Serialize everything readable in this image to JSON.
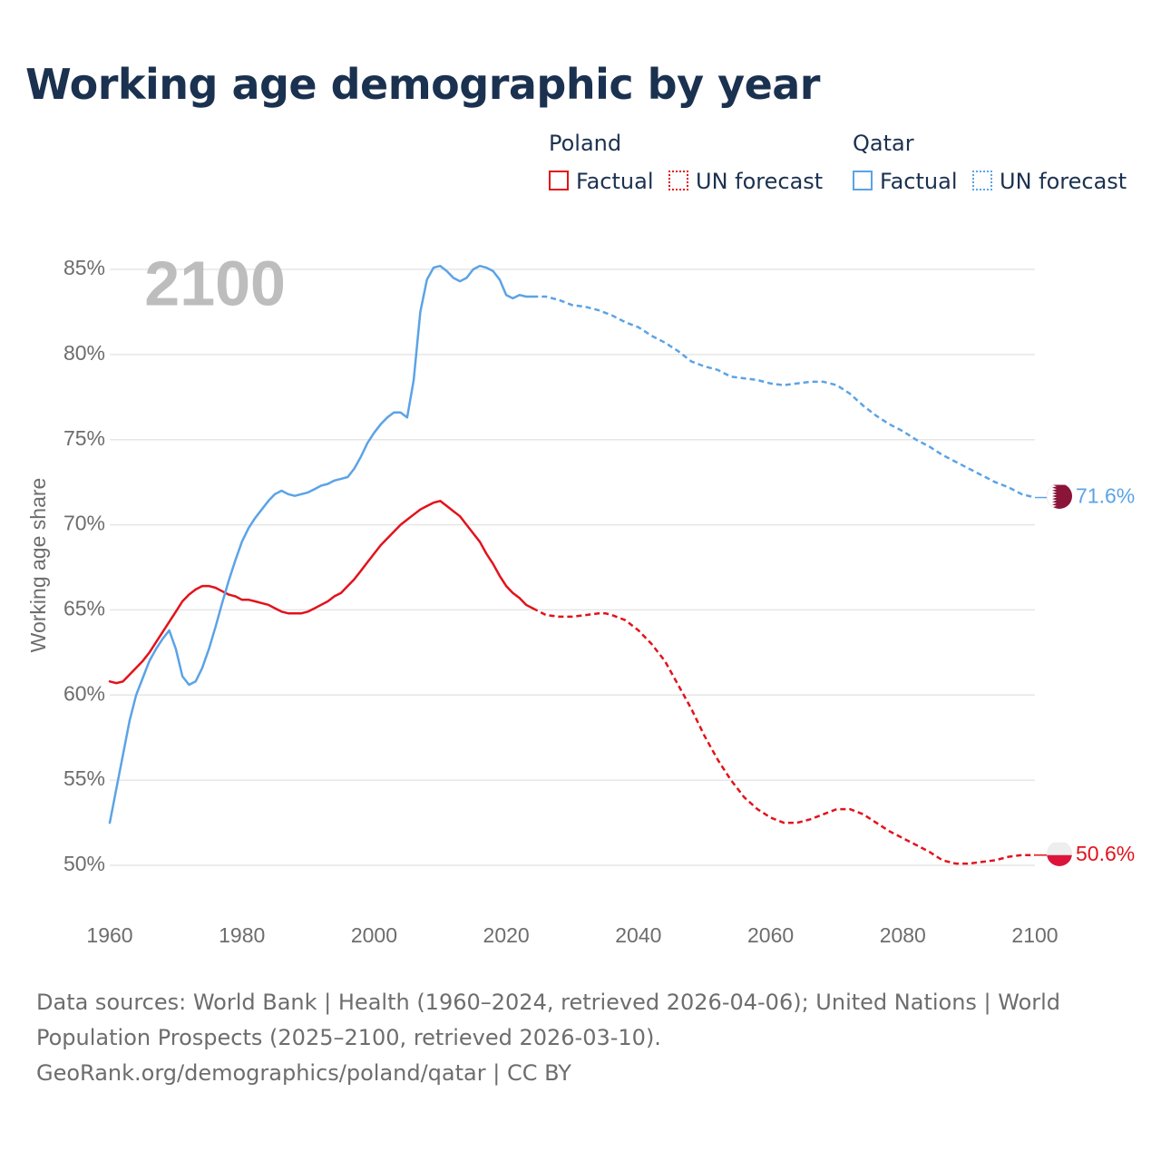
{
  "title": "Working age demographic by year",
  "legend": {
    "groups": [
      {
        "country": "Poland",
        "color": "#e3121b",
        "factual_label": "Factual",
        "forecast_label": "UN forecast"
      },
      {
        "country": "Qatar",
        "color": "#5ba3e6",
        "factual_label": "Factual",
        "forecast_label": "UN forecast"
      }
    ]
  },
  "year_watermark": "2100",
  "footer": {
    "sources": "Data sources: World Bank | Health (1960–2024, retrieved 2026-04-06); United Nations | World Population Prospects (2025–2100, retrieved 2026-03-10).",
    "credit": "GeoRank.org/demographics/poland/qatar | CC BY"
  },
  "chart_data": {
    "type": "line",
    "title": "Working age demographic by year",
    "xlabel": "",
    "ylabel": "Working age share",
    "xlim": [
      1960,
      2100
    ],
    "ylim": [
      48,
      86
    ],
    "x_ticks": [
      1960,
      1980,
      2000,
      2020,
      2040,
      2060,
      2080,
      2100
    ],
    "y_ticks": [
      50,
      55,
      60,
      65,
      70,
      75,
      80,
      85
    ],
    "y_tick_labels": [
      "50%",
      "55%",
      "60%",
      "65%",
      "70%",
      "75%",
      "80%",
      "85%"
    ],
    "x_tick_labels": [
      "1960",
      "1980",
      "2000",
      "2020",
      "2040",
      "2060",
      "2080",
      "2100"
    ],
    "factual_until": 2024,
    "series": [
      {
        "name": "Poland",
        "color": "#e3121b",
        "end_label": "50.6%",
        "flag": "poland",
        "points": [
          [
            1960,
            60.8
          ],
          [
            1961,
            60.7
          ],
          [
            1962,
            60.8
          ],
          [
            1963,
            61.2
          ],
          [
            1964,
            61.6
          ],
          [
            1965,
            62.0
          ],
          [
            1966,
            62.5
          ],
          [
            1967,
            63.1
          ],
          [
            1968,
            63.7
          ],
          [
            1969,
            64.3
          ],
          [
            1970,
            64.9
          ],
          [
            1971,
            65.5
          ],
          [
            1972,
            65.9
          ],
          [
            1973,
            66.2
          ],
          [
            1974,
            66.4
          ],
          [
            1975,
            66.4
          ],
          [
            1976,
            66.3
          ],
          [
            1977,
            66.1
          ],
          [
            1978,
            65.9
          ],
          [
            1979,
            65.8
          ],
          [
            1980,
            65.6
          ],
          [
            1981,
            65.6
          ],
          [
            1982,
            65.5
          ],
          [
            1983,
            65.4
          ],
          [
            1984,
            65.3
          ],
          [
            1985,
            65.1
          ],
          [
            1986,
            64.9
          ],
          [
            1987,
            64.8
          ],
          [
            1988,
            64.8
          ],
          [
            1989,
            64.8
          ],
          [
            1990,
            64.9
          ],
          [
            1991,
            65.1
          ],
          [
            1992,
            65.3
          ],
          [
            1993,
            65.5
          ],
          [
            1994,
            65.8
          ],
          [
            1995,
            66.0
          ],
          [
            1996,
            66.4
          ],
          [
            1997,
            66.8
          ],
          [
            1998,
            67.3
          ],
          [
            1999,
            67.8
          ],
          [
            2000,
            68.3
          ],
          [
            2001,
            68.8
          ],
          [
            2002,
            69.2
          ],
          [
            2003,
            69.6
          ],
          [
            2004,
            70.0
          ],
          [
            2005,
            70.3
          ],
          [
            2006,
            70.6
          ],
          [
            2007,
            70.9
          ],
          [
            2008,
            71.1
          ],
          [
            2009,
            71.3
          ],
          [
            2010,
            71.4
          ],
          [
            2011,
            71.1
          ],
          [
            2012,
            70.8
          ],
          [
            2013,
            70.5
          ],
          [
            2014,
            70.0
          ],
          [
            2015,
            69.5
          ],
          [
            2016,
            69.0
          ],
          [
            2017,
            68.3
          ],
          [
            2018,
            67.7
          ],
          [
            2019,
            67.0
          ],
          [
            2020,
            66.4
          ],
          [
            2021,
            66.0
          ],
          [
            2022,
            65.7
          ],
          [
            2023,
            65.3
          ],
          [
            2024,
            65.1
          ],
          [
            2025,
            64.9
          ],
          [
            2026,
            64.7
          ],
          [
            2028,
            64.6
          ],
          [
            2030,
            64.6
          ],
          [
            2032,
            64.7
          ],
          [
            2034,
            64.8
          ],
          [
            2035,
            64.8
          ],
          [
            2036,
            64.7
          ],
          [
            2038,
            64.4
          ],
          [
            2040,
            63.8
          ],
          [
            2042,
            63.0
          ],
          [
            2044,
            62.0
          ],
          [
            2046,
            60.6
          ],
          [
            2048,
            59.2
          ],
          [
            2050,
            57.6
          ],
          [
            2052,
            56.2
          ],
          [
            2054,
            55.0
          ],
          [
            2056,
            54.0
          ],
          [
            2058,
            53.3
          ],
          [
            2060,
            52.8
          ],
          [
            2062,
            52.5
          ],
          [
            2064,
            52.5
          ],
          [
            2066,
            52.7
          ],
          [
            2068,
            53.0
          ],
          [
            2070,
            53.3
          ],
          [
            2072,
            53.3
          ],
          [
            2074,
            53.0
          ],
          [
            2076,
            52.5
          ],
          [
            2078,
            52.0
          ],
          [
            2080,
            51.6
          ],
          [
            2082,
            51.2
          ],
          [
            2084,
            50.8
          ],
          [
            2086,
            50.3
          ],
          [
            2088,
            50.1
          ],
          [
            2090,
            50.1
          ],
          [
            2092,
            50.2
          ],
          [
            2094,
            50.3
          ],
          [
            2096,
            50.5
          ],
          [
            2098,
            50.6
          ],
          [
            2100,
            50.6
          ]
        ]
      },
      {
        "name": "Qatar",
        "color": "#5ba3e6",
        "end_label": "71.6%",
        "flag": "qatar",
        "points": [
          [
            1960,
            52.5
          ],
          [
            1961,
            54.5
          ],
          [
            1962,
            56.5
          ],
          [
            1963,
            58.5
          ],
          [
            1964,
            60.0
          ],
          [
            1965,
            61.0
          ],
          [
            1966,
            62.0
          ],
          [
            1967,
            62.7
          ],
          [
            1968,
            63.3
          ],
          [
            1969,
            63.8
          ],
          [
            1970,
            62.7
          ],
          [
            1971,
            61.1
          ],
          [
            1972,
            60.6
          ],
          [
            1973,
            60.8
          ],
          [
            1974,
            61.6
          ],
          [
            1975,
            62.7
          ],
          [
            1976,
            64.0
          ],
          [
            1977,
            65.4
          ],
          [
            1978,
            66.7
          ],
          [
            1979,
            67.9
          ],
          [
            1980,
            69.0
          ],
          [
            1981,
            69.8
          ],
          [
            1982,
            70.4
          ],
          [
            1983,
            70.9
          ],
          [
            1984,
            71.4
          ],
          [
            1985,
            71.8
          ],
          [
            1986,
            72.0
          ],
          [
            1987,
            71.8
          ],
          [
            1988,
            71.7
          ],
          [
            1989,
            71.8
          ],
          [
            1990,
            71.9
          ],
          [
            1991,
            72.1
          ],
          [
            1992,
            72.3
          ],
          [
            1993,
            72.4
          ],
          [
            1994,
            72.6
          ],
          [
            1995,
            72.7
          ],
          [
            1996,
            72.8
          ],
          [
            1997,
            73.3
          ],
          [
            1998,
            74.0
          ],
          [
            1999,
            74.8
          ],
          [
            2000,
            75.4
          ],
          [
            2001,
            75.9
          ],
          [
            2002,
            76.3
          ],
          [
            2003,
            76.6
          ],
          [
            2004,
            76.6
          ],
          [
            2005,
            76.3
          ],
          [
            2006,
            78.5
          ],
          [
            2007,
            82.5
          ],
          [
            2008,
            84.4
          ],
          [
            2009,
            85.1
          ],
          [
            2010,
            85.2
          ],
          [
            2011,
            84.9
          ],
          [
            2012,
            84.5
          ],
          [
            2013,
            84.3
          ],
          [
            2014,
            84.5
          ],
          [
            2015,
            85.0
          ],
          [
            2016,
            85.2
          ],
          [
            2017,
            85.1
          ],
          [
            2018,
            84.9
          ],
          [
            2019,
            84.4
          ],
          [
            2020,
            83.5
          ],
          [
            2021,
            83.3
          ],
          [
            2022,
            83.5
          ],
          [
            2023,
            83.4
          ],
          [
            2024,
            83.4
          ],
          [
            2026,
            83.4
          ],
          [
            2028,
            83.2
          ],
          [
            2030,
            82.9
          ],
          [
            2032,
            82.8
          ],
          [
            2034,
            82.6
          ],
          [
            2036,
            82.3
          ],
          [
            2038,
            81.9
          ],
          [
            2040,
            81.6
          ],
          [
            2042,
            81.1
          ],
          [
            2044,
            80.7
          ],
          [
            2046,
            80.2
          ],
          [
            2048,
            79.6
          ],
          [
            2050,
            79.3
          ],
          [
            2052,
            79.1
          ],
          [
            2054,
            78.7
          ],
          [
            2056,
            78.6
          ],
          [
            2058,
            78.5
          ],
          [
            2060,
            78.3
          ],
          [
            2062,
            78.2
          ],
          [
            2064,
            78.3
          ],
          [
            2066,
            78.4
          ],
          [
            2068,
            78.4
          ],
          [
            2070,
            78.2
          ],
          [
            2072,
            77.7
          ],
          [
            2074,
            77.0
          ],
          [
            2076,
            76.4
          ],
          [
            2078,
            75.9
          ],
          [
            2080,
            75.5
          ],
          [
            2082,
            75.0
          ],
          [
            2084,
            74.6
          ],
          [
            2086,
            74.1
          ],
          [
            2088,
            73.7
          ],
          [
            2090,
            73.3
          ],
          [
            2092,
            72.9
          ],
          [
            2094,
            72.5
          ],
          [
            2096,
            72.2
          ],
          [
            2098,
            71.8
          ],
          [
            2100,
            71.6
          ]
        ]
      }
    ]
  }
}
